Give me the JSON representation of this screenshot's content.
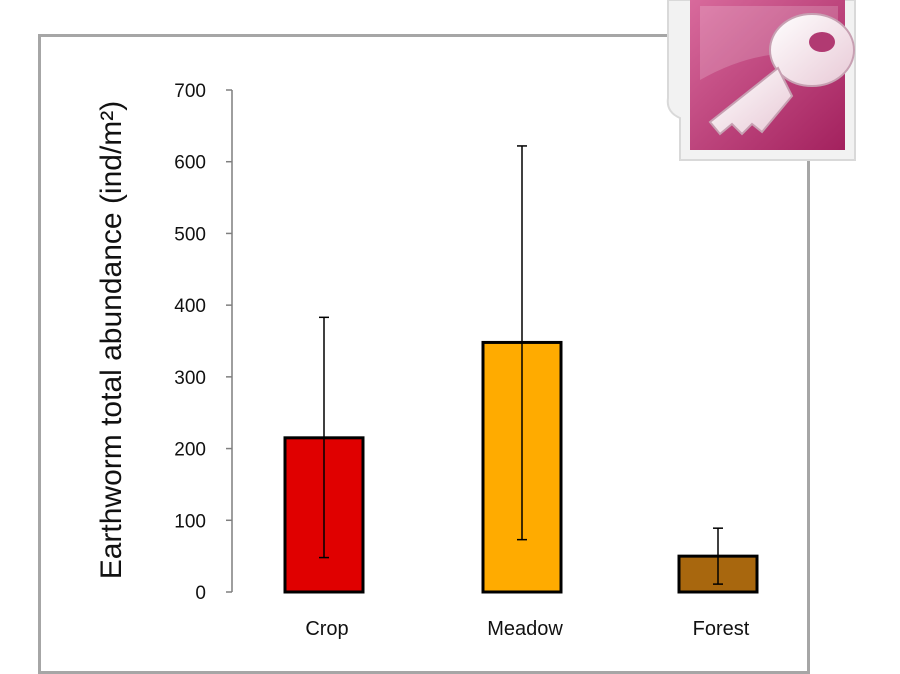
{
  "chart_data": {
    "type": "bar",
    "title": "",
    "xlabel": "",
    "ylabel": "Earthworm total abundance (ind/m²)",
    "ylim": [
      0,
      700
    ],
    "yticks": [
      0,
      100,
      200,
      300,
      400,
      500,
      600,
      700
    ],
    "categories": [
      "Crop",
      "Meadow",
      "Forest"
    ],
    "values": [
      215,
      348,
      50
    ],
    "error_bars": {
      "upper": [
        383,
        622,
        89
      ],
      "lower": [
        48,
        73,
        11
      ]
    },
    "colors": [
      "#e00000",
      "#ffab00",
      "#a8670e"
    ],
    "grid": false,
    "legend": "none"
  },
  "logo": {
    "icon": "key-icon",
    "colors": {
      "tile": "#a3215e",
      "tile_light": "#d86a9c",
      "border": "#f2f2f2",
      "key": "#f5e6ec"
    }
  }
}
